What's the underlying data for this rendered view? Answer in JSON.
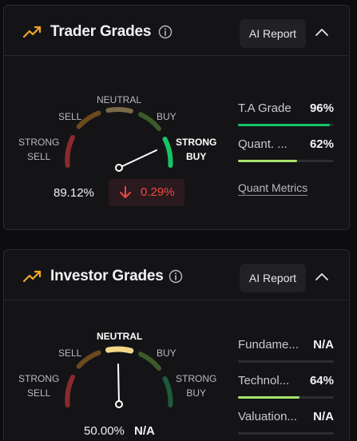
{
  "trader": {
    "title": "Trader Grades",
    "ai_report_label": "AI Report",
    "gauge": {
      "labels": {
        "strong_sell_1": "STRONG",
        "strong_sell_2": "SELL",
        "sell": "SELL",
        "neutral": "NEUTRAL",
        "buy": "BUY",
        "strong_buy_1": "STRONG",
        "strong_buy_2": "BUY"
      },
      "active_segment": "strong_buy",
      "needle_value": 0.89
    },
    "score": "89.12%",
    "change": "0.29%",
    "change_direction": "down",
    "metrics": [
      {
        "name": "T.A Grade",
        "value": "96%",
        "fill": 0.96,
        "color": "#16c466"
      },
      {
        "name": "Quant. ...",
        "value": "62%",
        "fill": 0.62,
        "color": "#a6e36b"
      }
    ],
    "quant_link": "Quant Metrics"
  },
  "investor": {
    "title": "Investor Grades",
    "ai_report_label": "AI Report",
    "gauge": {
      "labels": {
        "strong_sell_1": "STRONG",
        "strong_sell_2": "SELL",
        "sell": "SELL",
        "neutral": "NEUTRAL",
        "buy": "BUY",
        "strong_buy_1": "STRONG",
        "strong_buy_2": "BUY"
      },
      "active_segment": "neutral",
      "needle_value": 0.5
    },
    "score": "50.00%",
    "change": "N/A",
    "metrics": [
      {
        "name": "Fundame...",
        "value": "N/A",
        "fill": 0,
        "color": "#a6e36b"
      },
      {
        "name": "Technol...",
        "value": "64%",
        "fill": 0.64,
        "color": "#a6e36b"
      },
      {
        "name": "Valuation...",
        "value": "N/A",
        "fill": 0,
        "color": "#a6e36b"
      }
    ]
  },
  "colors": {
    "accent_orange": "#f5a623",
    "strong_sell": "#8a2a2e",
    "sell": "#6b4a1e",
    "neutral": "#7a6a48",
    "neutral_active": "#f3d88a",
    "buy": "#3d5a2a",
    "strong_buy_active": "#16c466",
    "strong_buy": "#1e5a3a"
  },
  "icons": {
    "trend": "trending-up-icon",
    "info": "info-icon",
    "collapse": "chevron-up-icon",
    "arrow": "arrow-down-icon"
  }
}
